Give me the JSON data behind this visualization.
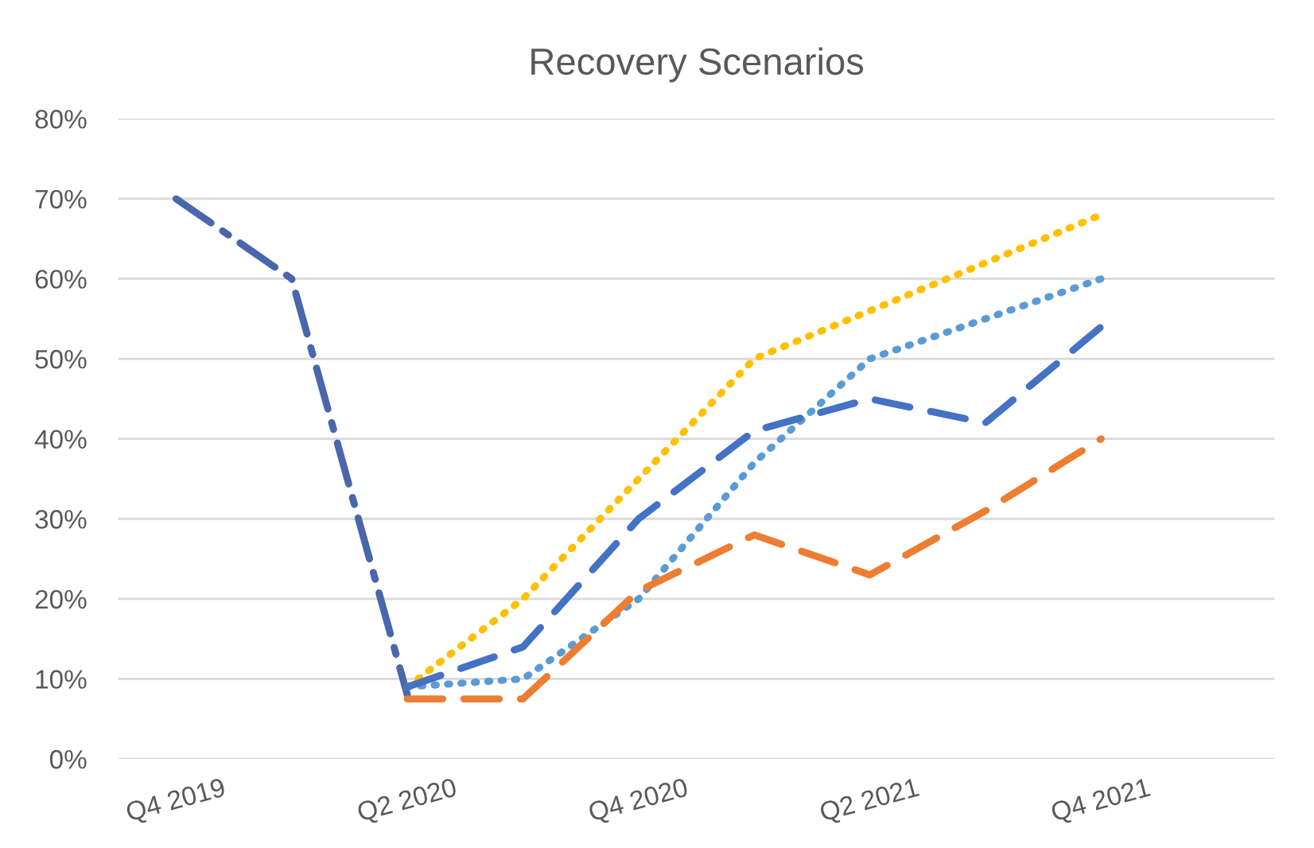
{
  "chart_data": {
    "type": "line",
    "title": "Recovery Scenarios",
    "categories": [
      "Q4 2019",
      null,
      "Q2 2020",
      null,
      "Q4 2020",
      null,
      "Q2 2021",
      null,
      "Q4 2021",
      null
    ],
    "series": [
      {
        "color": "#4a66ac",
        "line_style": "dashdot",
        "values": [
          70,
          60,
          8,
          null,
          null,
          null,
          null,
          null,
          null,
          null
        ]
      },
      {
        "color": "#ffc000",
        "line_style": "dotted",
        "values": [
          null,
          null,
          9,
          20,
          35,
          50,
          56,
          62,
          68,
          null
        ]
      },
      {
        "color": "#5b9bd5",
        "line_style": "dotted",
        "values": [
          null,
          null,
          9,
          10,
          20,
          37,
          50,
          55,
          60,
          null
        ]
      },
      {
        "color": "#4472c4",
        "line_style": "dashed",
        "values": [
          null,
          null,
          9,
          14,
          30,
          41,
          45,
          42,
          54,
          null
        ]
      },
      {
        "color": "#ed7d31",
        "line_style": "dashed",
        "values": [
          null,
          null,
          7.5,
          7.5,
          21,
          28,
          23,
          31,
          40,
          null
        ]
      }
    ],
    "ylim": [
      0,
      80
    ],
    "yticks": [
      {
        "value": 0,
        "label": "0%"
      },
      {
        "value": 10,
        "label": "10%"
      },
      {
        "value": 20,
        "label": "20%"
      },
      {
        "value": 30,
        "label": "30%"
      },
      {
        "value": 40,
        "label": "40%"
      },
      {
        "value": 50,
        "label": "50%"
      },
      {
        "value": 60,
        "label": "60%"
      },
      {
        "value": 70,
        "label": "70%"
      },
      {
        "value": 80,
        "label": "80%"
      }
    ],
    "grid": "y",
    "marker": "none"
  }
}
